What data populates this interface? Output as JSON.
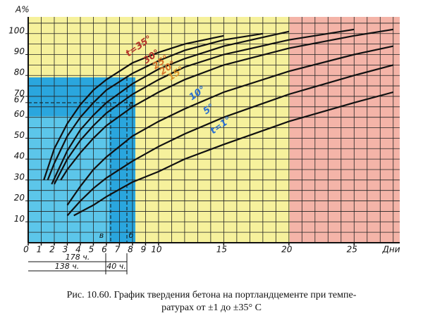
{
  "chart_data": {
    "type": "line",
    "x_label": "Дни",
    "y_label": "A%",
    "xlim": [
      0,
      28.5
    ],
    "ylim": [
      0,
      108
    ],
    "xticks": [
      0,
      1,
      2,
      3,
      4,
      5,
      6,
      7,
      8,
      9,
      10,
      15,
      20,
      25
    ],
    "yticks": [
      10,
      20,
      30,
      40,
      50,
      60,
      67,
      70,
      80,
      90,
      100
    ],
    "grid": true,
    "series": [
      {
        "name": "t=35°",
        "color": "#111111",
        "label_color": "#b5332a",
        "x": [
          1.2,
          2,
          3,
          4,
          5,
          6,
          8,
          10,
          12,
          15
        ],
        "values": [
          30,
          45,
          57,
          66,
          73,
          78,
          86,
          91,
          95,
          99
        ]
      },
      {
        "name": "30°",
        "color": "#111111",
        "label_color": "#b5332a",
        "x": [
          1.5,
          2,
          3,
          4,
          5,
          6,
          8,
          10,
          12,
          15,
          18
        ],
        "values": [
          30,
          38,
          51,
          60,
          67,
          73,
          81,
          87,
          92,
          97,
          100
        ]
      },
      {
        "name": "25°",
        "color": "#111111",
        "label_color": "#d8742a",
        "x": [
          1.8,
          3,
          4,
          5,
          6,
          8,
          10,
          12,
          15,
          20
        ],
        "values": [
          28,
          44,
          54,
          61,
          67,
          76,
          83,
          88,
          94,
          101
        ]
      },
      {
        "name": "20°",
        "color": "#111111",
        "label_color": "#d8742a",
        "x": [
          2,
          3,
          4,
          5,
          6,
          8,
          10,
          12,
          15,
          20,
          25
        ],
        "values": [
          28,
          40,
          49,
          56,
          62,
          71,
          78,
          84,
          90,
          97,
          102
        ]
      },
      {
        "name": "15°",
        "color": "#111111",
        "label_color": "#d8942a",
        "x": [
          2.5,
          3,
          4,
          5,
          6,
          8,
          10,
          12,
          15,
          20,
          25,
          28
        ],
        "values": [
          30,
          35,
          43,
          50,
          56,
          65,
          72,
          78,
          85,
          93,
          99,
          102
        ]
      },
      {
        "name": "10°",
        "color": "#111111",
        "label_color": "#2a6fd0",
        "x": [
          3,
          4,
          5,
          6,
          8,
          10,
          12,
          15,
          20,
          25,
          28
        ],
        "values": [
          18,
          27,
          35,
          41,
          51,
          58,
          64,
          72,
          82,
          90,
          94
        ]
      },
      {
        "name": "5°",
        "color": "#111111",
        "label_color": "#2a6fd0",
        "x": [
          3,
          4,
          5,
          6,
          8,
          10,
          12,
          15,
          20,
          25,
          28
        ],
        "values": [
          13,
          20,
          26,
          31,
          39,
          46,
          52,
          60,
          71,
          80,
          85
        ]
      },
      {
        "name": "t=1°",
        "color": "#111111",
        "label_color": "#2a6fd0",
        "x": [
          3.5,
          5,
          6,
          8,
          10,
          12,
          15,
          20,
          25,
          28
        ],
        "values": [
          13,
          18,
          22,
          29,
          34,
          40,
          47,
          58,
          67,
          72
        ]
      }
    ],
    "annotations": [
      "178 ч.",
      "138 ч.",
      "40 ч.",
      "в",
      "б",
      "а"
    ]
  },
  "caption": [
    "Рис. 10.60. График твердения бетона на портландцементе при темпе-",
    "ратурах от ±1 до ±35° С"
  ]
}
